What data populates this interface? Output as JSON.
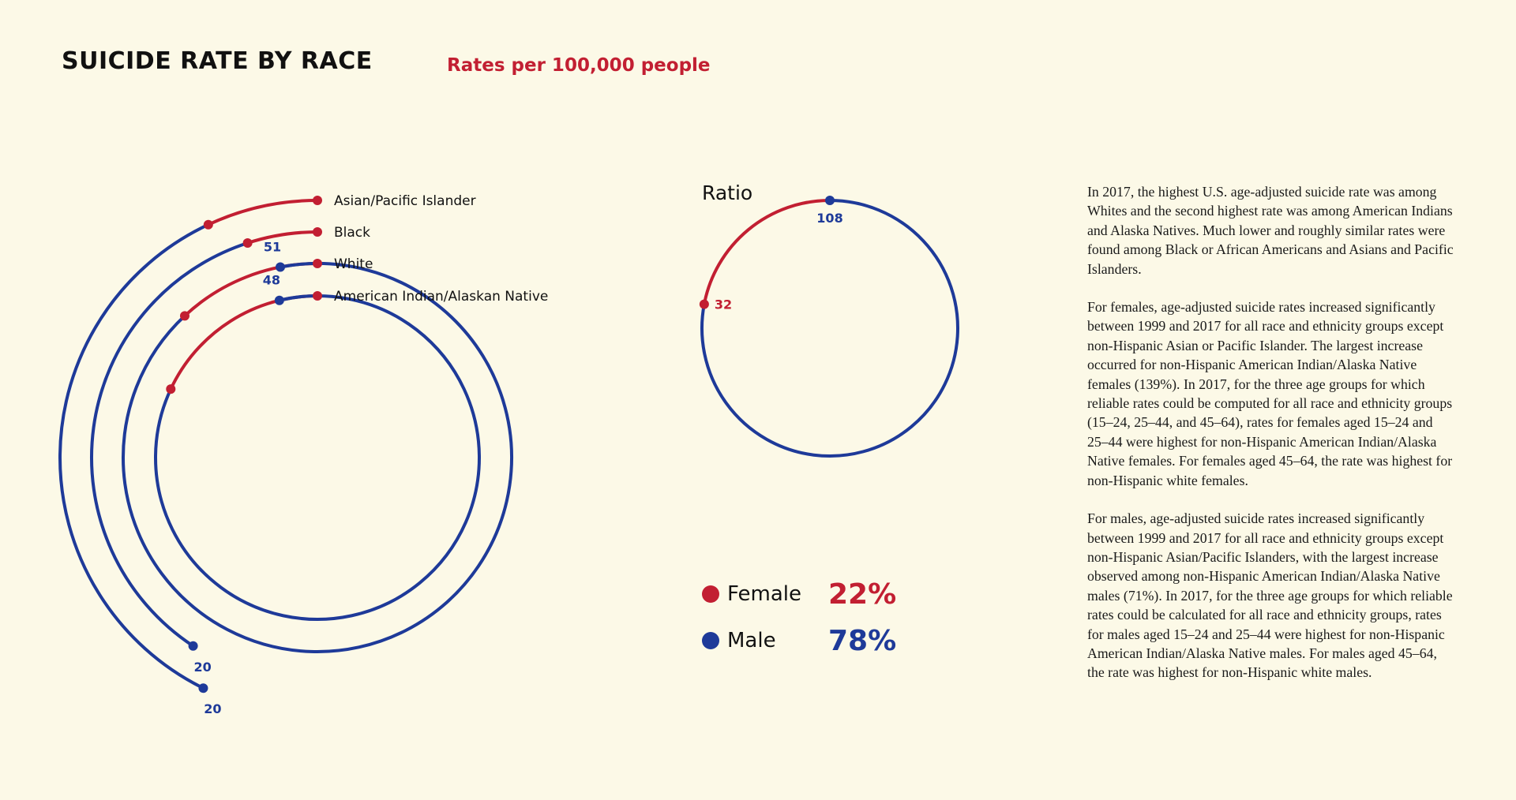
{
  "title": "SUICIDE RATE BY RACE",
  "subtitle": "Rates per 100,000 people",
  "colors": {
    "female": "#c21f32",
    "male": "#1e3a99",
    "background": "#fcf9e7"
  },
  "chart_data": [
    {
      "type": "radial-arc",
      "title": "SUICIDE RATE BY RACE",
      "subtitle": "Rates per 100,000 people",
      "series_colors": {
        "female": "#c21f32",
        "male": "#1e3a99"
      },
      "categories": [
        "Asian/Pacific Islander",
        "Black",
        "White",
        "American Indian/Alaskan Native"
      ],
      "series": [
        {
          "name": "Female",
          "values": [
            3.9,
            2.8,
            6.7,
            10.1
          ]
        },
        {
          "name": "Male",
          "values": [
            20,
            20,
            51,
            48
          ]
        }
      ],
      "end_labels": [
        "20",
        "20",
        "51",
        "48"
      ]
    },
    {
      "type": "pie",
      "title": "Ratio",
      "point_labels": [
        "32",
        "108"
      ],
      "slices": [
        {
          "label": "Female",
          "value": 22,
          "display": "22%"
        },
        {
          "label": "Male",
          "value": 78,
          "display": "78%"
        }
      ]
    }
  ],
  "paragraphs": [
    "In 2017, the highest U.S. age-adjusted suicide rate was among Whites and the second highest rate was among American Indians and Alaska Natives. Much lower and roughly similar rates were found among Black or African Americans and Asians and Pacific Islanders.",
    "For females, age-adjusted suicide rates increased significantly between 1999 and 2017 for all race and ethnicity groups except non-Hispanic Asian or Pacific Islander. The largest increase occurred for non-Hispanic American Indian/Alaska Native females (139%). In 2017, for the three age groups for which reliable rates could be computed for all race and ethnicity groups (15–24, 25–44, and 45–64), rates for females aged 15–24 and 25–44 were highest for non-Hispanic American Indian/Alaska Native females. For females aged 45–64, the rate was highest for non-Hispanic white females.",
    "For males, age-adjusted suicide rates increased significantly between 1999 and 2017 for all race and ethnicity groups except non-Hispanic Asian/Pacific Islanders, with the largest increase observed among non-Hispanic American Indian/Alaska Native males (71%). In 2017, for the three age groups for which reliable rates could be calculated for all race and ethnicity groups, rates for males aged 15–24 and 25–44 were highest for non-Hispanic American Indian/Alaska Native males. For males aged 45–64, the rate was highest for non-Hispanic white males."
  ]
}
